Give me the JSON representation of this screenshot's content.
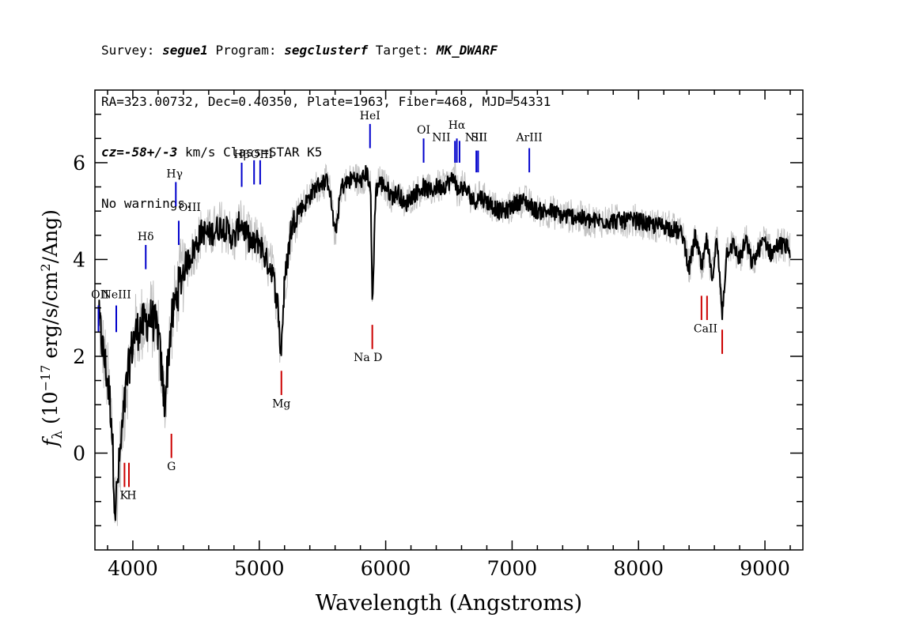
{
  "header": {
    "line1": {
      "survey_label": "Survey: ",
      "survey": "segue1",
      "program_label": " Program: ",
      "program": "segclusterf",
      "target_label": " Target: ",
      "target": "MK_DWARF"
    },
    "line2": "RA=323.00732, Dec=0.40350, Plate=1963, Fiber=468, MJD=54331",
    "line3": {
      "cz_label": "cz",
      "cz_value": "=-58+/-3",
      "cz_unit": " km/s Class=STAR K5"
    },
    "line4": "No warnings."
  },
  "chart_data": {
    "type": "line",
    "xlabel": "Wavelength (Angstroms)",
    "ylabel_parts": {
      "f": "f",
      "sub": "λ",
      "open": " (10",
      "exp1": "−17",
      "mid": " erg/s/cm",
      "exp2": "2",
      "close": "/Ang)"
    },
    "xlim": [
      3700,
      9300
    ],
    "ylim": [
      -2.0,
      7.5
    ],
    "xticks": [
      4000,
      5000,
      6000,
      7000,
      8000,
      9000
    ],
    "yticks": [
      0,
      2,
      4,
      6
    ],
    "colors": {
      "flux": "#000000",
      "error": "#c0c0c0",
      "emission": "#0000cc",
      "absorption": "#cc0000",
      "frame": "#000000"
    },
    "series": [
      {
        "role": "smoothed-flux",
        "x": [
          3730,
          3760,
          3800,
          3830,
          3860,
          3890,
          3920,
          3950,
          3980,
          4010,
          4050,
          4100,
          4150,
          4200,
          4250,
          4300,
          4340,
          4380,
          4420,
          4460,
          4500,
          4550,
          4600,
          4650,
          4700,
          4750,
          4800,
          4850,
          4900,
          4950,
          5000,
          5050,
          5100,
          5150,
          5170,
          5200,
          5250,
          5300,
          5350,
          5400,
          5450,
          5500,
          5550,
          5600,
          5650,
          5700,
          5750,
          5800,
          5850,
          5880,
          5895,
          5920,
          5950,
          6000,
          6050,
          6100,
          6150,
          6200,
          6250,
          6300,
          6350,
          6400,
          6450,
          6500,
          6550,
          6563,
          6600,
          6650,
          6700,
          6750,
          6800,
          6850,
          6900,
          6950,
          7000,
          7050,
          7100,
          7150,
          7200,
          7300,
          7400,
          7500,
          7600,
          7700,
          7800,
          7900,
          8000,
          8100,
          8200,
          8300,
          8350,
          8400,
          8450,
          8500,
          8540,
          8580,
          8620,
          8662,
          8700,
          8750,
          8800,
          8850,
          8900,
          8950,
          9000,
          9050,
          9100,
          9150,
          9200
        ],
        "y": [
          2.8,
          2.2,
          1.5,
          0.8,
          -1.2,
          -0.3,
          0.6,
          1.4,
          2.0,
          2.4,
          2.6,
          2.7,
          2.8,
          2.5,
          1.0,
          2.6,
          3.2,
          3.6,
          3.9,
          4.1,
          4.3,
          4.6,
          4.5,
          4.6,
          4.7,
          4.6,
          4.4,
          4.8,
          4.5,
          4.3,
          4.4,
          4.0,
          3.8,
          3.0,
          2.0,
          3.5,
          4.6,
          5.0,
          5.1,
          5.3,
          5.5,
          5.6,
          5.6,
          4.5,
          5.5,
          5.6,
          5.7,
          5.6,
          5.8,
          5.5,
          3.0,
          5.4,
          5.6,
          5.5,
          5.3,
          5.4,
          5.1,
          5.3,
          5.4,
          5.5,
          5.4,
          5.5,
          5.5,
          5.6,
          5.7,
          5.4,
          5.5,
          5.4,
          5.2,
          5.3,
          5.2,
          5.1,
          5.0,
          5.0,
          5.1,
          5.2,
          5.2,
          5.1,
          5.0,
          5.0,
          4.9,
          4.9,
          4.8,
          4.8,
          4.8,
          4.8,
          4.8,
          4.7,
          4.7,
          4.6,
          4.5,
          3.8,
          4.5,
          3.8,
          4.4,
          3.6,
          4.4,
          2.9,
          4.2,
          4.3,
          4.0,
          4.4,
          3.9,
          4.2,
          4.4,
          4.1,
          4.3,
          4.3,
          4.2
        ]
      }
    ],
    "emission_lines": [
      {
        "label": "OII",
        "x": 3728,
        "y": 2.5,
        "h": 0.55,
        "lx": 3740,
        "ly": 3.2
      },
      {
        "label": "NeIII",
        "x": 3869,
        "y": 2.5,
        "h": 0.55,
        "lx": 3870,
        "ly": 3.2
      },
      {
        "label": "Hδ",
        "x": 4102,
        "y": 3.8,
        "h": 0.5,
        "lx": 4102,
        "ly": 4.4
      },
      {
        "label": "Hγ",
        "x": 4340,
        "y": 5.1,
        "h": 0.5,
        "lx": 4330,
        "ly": 5.7
      },
      {
        "label": "OIII",
        "x": 4363,
        "y": 4.3,
        "h": 0.5,
        "lx": 4450,
        "ly": 5.0
      },
      {
        "label": "Hβ",
        "x": 4861,
        "y": 5.5,
        "h": 0.5,
        "lx": 4861,
        "ly": 6.1
      },
      {
        "label": "OIII",
        "x": 4959,
        "y": 5.55,
        "h": 0.5,
        "lx": 5020,
        "ly": 6.1
      },
      {
        "label": "OIII_b",
        "x": 5007,
        "y": 5.55,
        "h": 0.5,
        "lx": null,
        "ly": null
      },
      {
        "label": "HeI",
        "x": 5876,
        "y": 6.3,
        "h": 0.5,
        "lx": 5876,
        "ly": 6.9
      },
      {
        "label": "OI",
        "x": 6300,
        "y": 6.0,
        "h": 0.5,
        "lx": 6300,
        "ly": 6.6
      },
      {
        "label": "NII",
        "x": 6548,
        "y": 6.0,
        "h": 0.45,
        "lx": 6440,
        "ly": 6.45
      },
      {
        "label": "Hα",
        "x": 6563,
        "y": 6.0,
        "h": 0.5,
        "lx": 6563,
        "ly": 6.7
      },
      {
        "label": "NII_b",
        "x": 6584,
        "y": 6.0,
        "h": 0.45,
        "lx": null,
        "ly": null
      },
      {
        "label": "SII",
        "x": 6717,
        "y": 5.8,
        "h": 0.45,
        "lx": 6740,
        "ly": 6.45
      },
      {
        "label": "NII",
        "x": 6731,
        "y": 5.8,
        "h": 0.45,
        "lx": 6700,
        "ly": 6.45
      },
      {
        "label": "ArIII",
        "x": 7136,
        "y": 5.8,
        "h": 0.5,
        "lx": 7136,
        "ly": 6.45
      }
    ],
    "absorption_lines": [
      {
        "label": "K",
        "x": 3934,
        "y": -0.7,
        "h": 0.5,
        "lx": 3930,
        "ly": -0.95
      },
      {
        "label": "H",
        "x": 3969,
        "y": -0.7,
        "h": 0.5,
        "lx": 3990,
        "ly": -0.95
      },
      {
        "label": "G",
        "x": 4305,
        "y": -0.1,
        "h": 0.5,
        "lx": 4305,
        "ly": -0.35
      },
      {
        "label": "Mg",
        "x": 5175,
        "y": 1.2,
        "h": 0.5,
        "lx": 5175,
        "ly": 0.95
      },
      {
        "label": "Na  D",
        "x": 5894,
        "y": 2.15,
        "h": 0.5,
        "lx": 5860,
        "ly": 1.9
      },
      {
        "label": "CaII",
        "x": 8498,
        "y": 2.75,
        "h": 0.5,
        "lx": 8530,
        "ly": 2.5
      },
      {
        "label": "CaII_b",
        "x": 8542,
        "y": 2.75,
        "h": 0.5,
        "lx": null,
        "ly": null
      },
      {
        "label": "CaII_c",
        "x": 8662,
        "y": 2.05,
        "h": 0.5,
        "lx": null,
        "ly": null
      }
    ]
  }
}
